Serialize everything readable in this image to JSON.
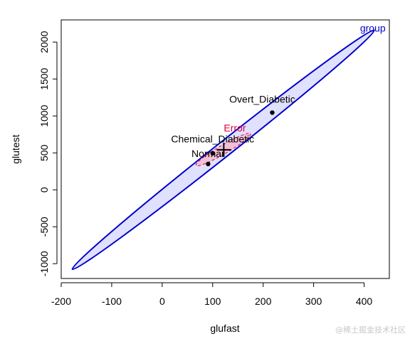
{
  "chart_data": {
    "type": "scatter",
    "title": "",
    "xlabel": "glufast",
    "ylabel": "glutest",
    "xlim": [
      -200,
      450
    ],
    "ylim": [
      -1200,
      2300
    ],
    "xticks": [
      -200,
      -100,
      0,
      100,
      200,
      300,
      400
    ],
    "yticks": [
      -1000,
      -500,
      0,
      500,
      1000,
      1500,
      2000
    ],
    "grid": false,
    "points": [
      {
        "label": "Overt_Diabetic",
        "x": 218,
        "y": 1045
      },
      {
        "label": "Chemical_Diabetic",
        "x": 100,
        "y": 495
      },
      {
        "label": "Normar",
        "x": 91,
        "y": 350
      }
    ],
    "grand_mean": {
      "x": 122,
      "y": 542
    },
    "ellipses": [
      {
        "label": "group",
        "color": "#0000cc",
        "fill": "#e0e0ff",
        "style": "solid",
        "center": {
          "x": 122,
          "y": 542
        },
        "extremes": [
          {
            "x": 420,
            "y": 2160
          },
          {
            "x": -178,
            "y": -1075
          }
        ],
        "minor_extreme": {
          "x": 108,
          "y": 600
        }
      },
      {
        "label": "Error",
        "color": "#e0003c",
        "fill": "#f5b8cc",
        "style": "dashed",
        "center": {
          "x": 122,
          "y": 542
        },
        "extremes": [
          {
            "x": 175,
            "y": 760
          },
          {
            "x": 67,
            "y": 330
          }
        ],
        "minor_extreme": {
          "x": 115,
          "y": 590
        }
      }
    ]
  },
  "watermark": "@稀土掘金技术社区"
}
